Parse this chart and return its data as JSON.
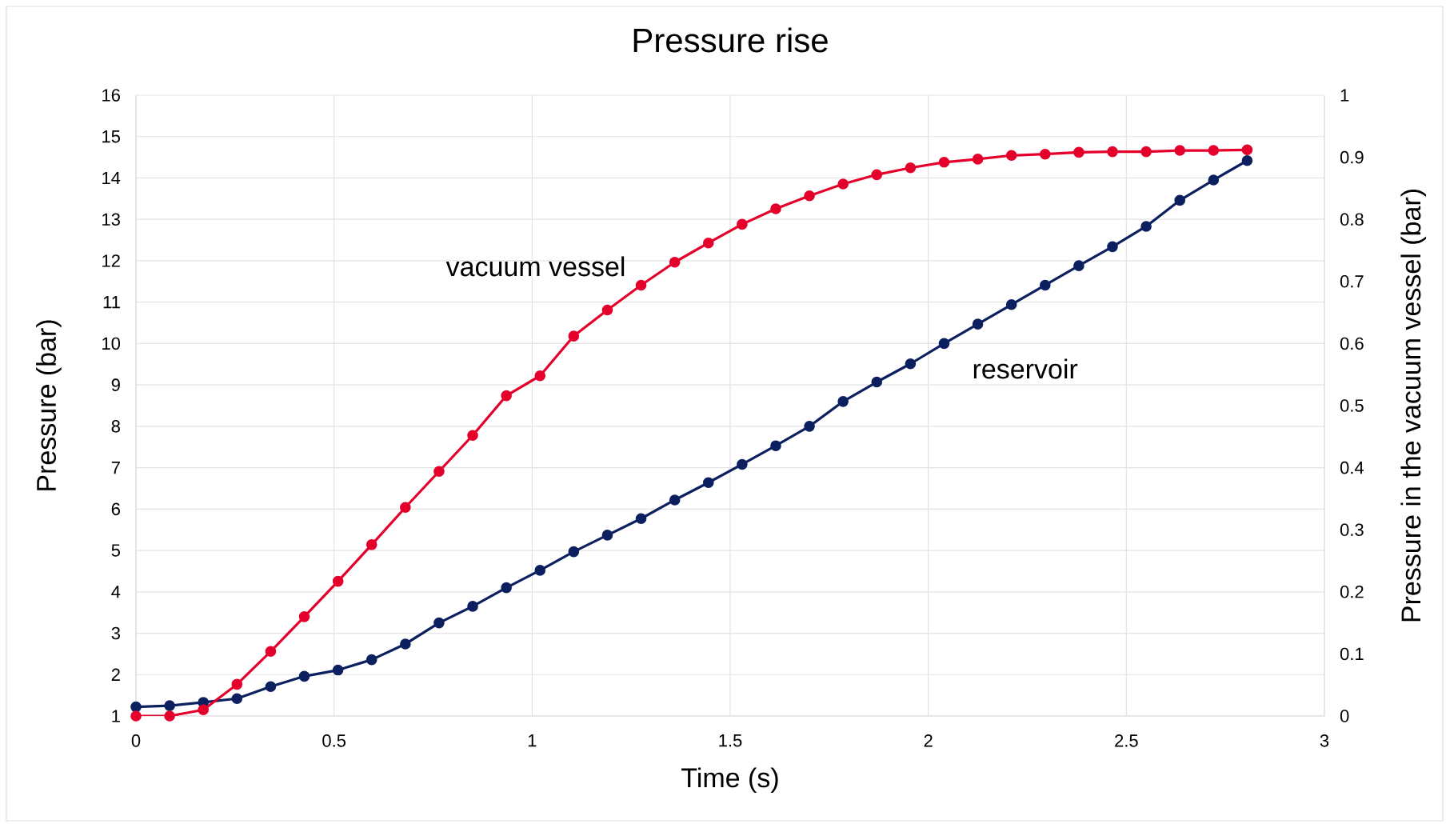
{
  "chart_data": {
    "type": "line",
    "title": "Pressure rise",
    "xlabel": "Time (s)",
    "ylabel": "Pressure (bar)",
    "y2label": "Pressure in the vacuum vessel (bar)",
    "x": [
      0,
      0.085,
      0.17,
      0.255,
      0.34,
      0.425,
      0.51,
      0.595,
      0.68,
      0.765,
      0.85,
      0.935,
      1.02,
      1.105,
      1.19,
      1.275,
      1.36,
      1.445,
      1.53,
      1.615,
      1.7,
      1.785,
      1.87,
      1.955,
      2.04,
      2.125,
      2.21,
      2.295,
      2.38,
      2.465,
      2.55,
      2.635,
      2.72,
      2.805
    ],
    "series": [
      {
        "name": "reservoir",
        "color": "#0c2060",
        "values": [
          1.22,
          1.25,
          1.33,
          1.42,
          1.71,
          1.96,
          2.11,
          2.36,
          2.74,
          3.25,
          3.65,
          4.1,
          4.52,
          4.97,
          5.37,
          5.77,
          6.22,
          6.64,
          7.08,
          7.53,
          8.0,
          8.6,
          9.07,
          9.51,
          10.0,
          10.47,
          10.94,
          11.41,
          11.88,
          12.34,
          12.83,
          13.46,
          13.95,
          14.42
        ]
      },
      {
        "name": "vacuum vessel",
        "color": "#e4002b",
        "axis": "y2",
        "values": [
          0,
          0,
          0.01,
          0.051,
          0.104,
          0.16,
          0.217,
          0.276,
          0.336,
          0.394,
          0.452,
          0.516,
          0.548,
          0.612,
          0.654,
          0.694,
          0.731,
          0.762,
          0.792,
          0.817,
          0.838,
          0.857,
          0.872,
          0.883,
          0.892,
          0.897,
          0.903,
          0.905,
          0.908,
          0.909,
          0.909,
          0.911,
          0.911,
          0.912
        ]
      }
    ],
    "xlim": [
      0,
      3
    ],
    "xticks": [
      0,
      0.5,
      1,
      1.5,
      2,
      2.5,
      3
    ],
    "ylim": [
      1,
      16
    ],
    "yticks": [
      1,
      2,
      3,
      4,
      5,
      6,
      7,
      8,
      9,
      10,
      11,
      12,
      13,
      14,
      15,
      16
    ],
    "y2lim": [
      0,
      1
    ],
    "y2ticks": [
      0,
      0.1,
      0.2,
      0.3,
      0.4,
      0.5,
      0.6,
      0.7,
      0.8,
      0.9,
      1
    ],
    "grid": true,
    "marker": "circle",
    "line_style": "solid"
  }
}
